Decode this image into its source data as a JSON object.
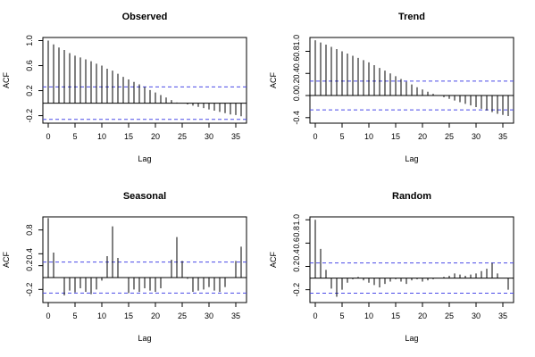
{
  "chart_data": [
    {
      "type": "bar",
      "title": "Observed",
      "xlabel": "Lag",
      "ylabel": "ACF",
      "xlim": [
        -1,
        37
      ],
      "ylim": [
        -0.32,
        1.05
      ],
      "xticks": [
        0,
        5,
        10,
        15,
        20,
        25,
        30,
        35
      ],
      "yticks": [
        -0.2,
        0.2,
        0.6,
        1.0
      ],
      "ytick_labels": [
        "-0.2",
        "0.2",
        "0.6",
        "1.0"
      ],
      "conf_band": [
        0.26,
        -0.26
      ],
      "lags": [
        0,
        1,
        2,
        3,
        4,
        5,
        6,
        7,
        8,
        9,
        10,
        11,
        12,
        13,
        14,
        15,
        16,
        17,
        18,
        19,
        20,
        21,
        22,
        23,
        24,
        25,
        26,
        27,
        28,
        29,
        30,
        31,
        32,
        33,
        34,
        35,
        36
      ],
      "values": [
        1.0,
        0.94,
        0.89,
        0.85,
        0.8,
        0.76,
        0.73,
        0.7,
        0.67,
        0.63,
        0.6,
        0.55,
        0.52,
        0.47,
        0.42,
        0.38,
        0.34,
        0.3,
        0.26,
        0.21,
        0.17,
        0.13,
        0.09,
        0.05,
        0.01,
        0.0,
        -0.02,
        -0.04,
        -0.06,
        -0.08,
        -0.1,
        -0.12,
        -0.14,
        -0.16,
        -0.18,
        -0.19,
        -0.21
      ]
    },
    {
      "type": "bar",
      "title": "Trend",
      "xlabel": "Lag",
      "ylabel": "ACF",
      "xlim": [
        -1,
        37
      ],
      "ylim": [
        -0.5,
        1.05
      ],
      "xticks": [
        0,
        5,
        10,
        15,
        20,
        25,
        30,
        35
      ],
      "yticks": [
        -0.4,
        0.0,
        0.4,
        0.8
      ],
      "ytick_labels": [
        "-0.4",
        "0.0",
        "0.4",
        "0.8"
      ],
      "extra_ytick_labels": [
        {
          "value": 0.2,
          "label": "0.2"
        },
        {
          "value": 0.6,
          "label": "0.6"
        },
        {
          "value": 1.0,
          "label": "1.0"
        }
      ],
      "conf_band": [
        0.26,
        -0.26
      ],
      "lags": [
        0,
        1,
        2,
        3,
        4,
        5,
        6,
        7,
        8,
        9,
        10,
        11,
        12,
        13,
        14,
        15,
        16,
        17,
        18,
        19,
        20,
        21,
        22,
        23,
        24,
        25,
        26,
        27,
        28,
        29,
        30,
        31,
        32,
        33,
        34,
        35,
        36
      ],
      "values": [
        1.0,
        0.96,
        0.92,
        0.88,
        0.84,
        0.8,
        0.76,
        0.72,
        0.68,
        0.64,
        0.6,
        0.55,
        0.5,
        0.45,
        0.4,
        0.35,
        0.3,
        0.25,
        0.2,
        0.15,
        0.11,
        0.07,
        0.03,
        0.0,
        -0.03,
        -0.06,
        -0.09,
        -0.12,
        -0.15,
        -0.18,
        -0.21,
        -0.24,
        -0.27,
        -0.3,
        -0.33,
        -0.35,
        -0.37
      ]
    },
    {
      "type": "bar",
      "title": "Seasonal",
      "xlabel": "Lag",
      "ylabel": "ACF",
      "xlim": [
        -1,
        37
      ],
      "ylim": [
        -0.42,
        1.02
      ],
      "xticks": [
        0,
        5,
        10,
        15,
        20,
        25,
        30,
        35
      ],
      "yticks": [
        -0.2,
        0.2,
        0.4,
        0.8
      ],
      "ytick_labels": [
        "-0.2",
        "0.2",
        "0.4",
        "0.8"
      ],
      "conf_band": [
        0.26,
        -0.26
      ],
      "lags": [
        0,
        1,
        2,
        3,
        4,
        5,
        6,
        7,
        8,
        9,
        10,
        11,
        12,
        13,
        14,
        15,
        16,
        17,
        18,
        19,
        20,
        21,
        22,
        23,
        24,
        25,
        26,
        27,
        28,
        29,
        30,
        31,
        32,
        33,
        34,
        35,
        36
      ],
      "values": [
        1.0,
        0.42,
        0.0,
        -0.3,
        -0.22,
        -0.25,
        -0.18,
        -0.24,
        -0.28,
        -0.2,
        -0.05,
        0.36,
        0.86,
        0.33,
        0.0,
        -0.26,
        -0.2,
        -0.24,
        -0.18,
        -0.22,
        -0.24,
        -0.18,
        0.0,
        0.3,
        0.68,
        0.28,
        -0.02,
        -0.24,
        -0.22,
        -0.2,
        -0.16,
        -0.22,
        -0.24,
        -0.16,
        0.0,
        0.28,
        0.52
      ]
    },
    {
      "type": "bar",
      "title": "Random",
      "xlabel": "Lag",
      "ylabel": "ACF",
      "xlim": [
        -1,
        37
      ],
      "ylim": [
        -0.42,
        1.05
      ],
      "xticks": [
        0,
        5,
        10,
        15,
        20,
        25,
        30,
        35
      ],
      "yticks": [
        -0.2,
        0.2,
        0.6,
        1.0
      ],
      "ytick_labels": [
        "-0.2",
        "0.2",
        "0.6",
        "1.0"
      ],
      "extra_ytick_labels": [
        {
          "value": 0.4,
          "label": "0.4"
        },
        {
          "value": 0.8,
          "label": "0.8"
        }
      ],
      "conf_band": [
        0.26,
        -0.26
      ],
      "lags": [
        0,
        1,
        2,
        3,
        4,
        5,
        6,
        7,
        8,
        9,
        10,
        11,
        12,
        13,
        14,
        15,
        16,
        17,
        18,
        19,
        20,
        21,
        22,
        23,
        24,
        25,
        26,
        27,
        28,
        29,
        30,
        31,
        32,
        33,
        34,
        35,
        36
      ],
      "values": [
        1.0,
        0.5,
        0.14,
        -0.18,
        -0.32,
        -0.2,
        -0.08,
        -0.02,
        0.02,
        -0.04,
        -0.08,
        -0.12,
        -0.16,
        -0.1,
        -0.06,
        -0.02,
        -0.06,
        -0.1,
        -0.04,
        -0.02,
        -0.06,
        -0.04,
        -0.02,
        0.0,
        0.02,
        0.04,
        0.08,
        0.06,
        0.04,
        0.06,
        0.08,
        0.12,
        0.16,
        0.26,
        0.08,
        0.0,
        -0.2
      ]
    }
  ],
  "colors": {
    "bars": "#000000",
    "conf_band": "#4a4ae8",
    "axes": "#000000"
  }
}
